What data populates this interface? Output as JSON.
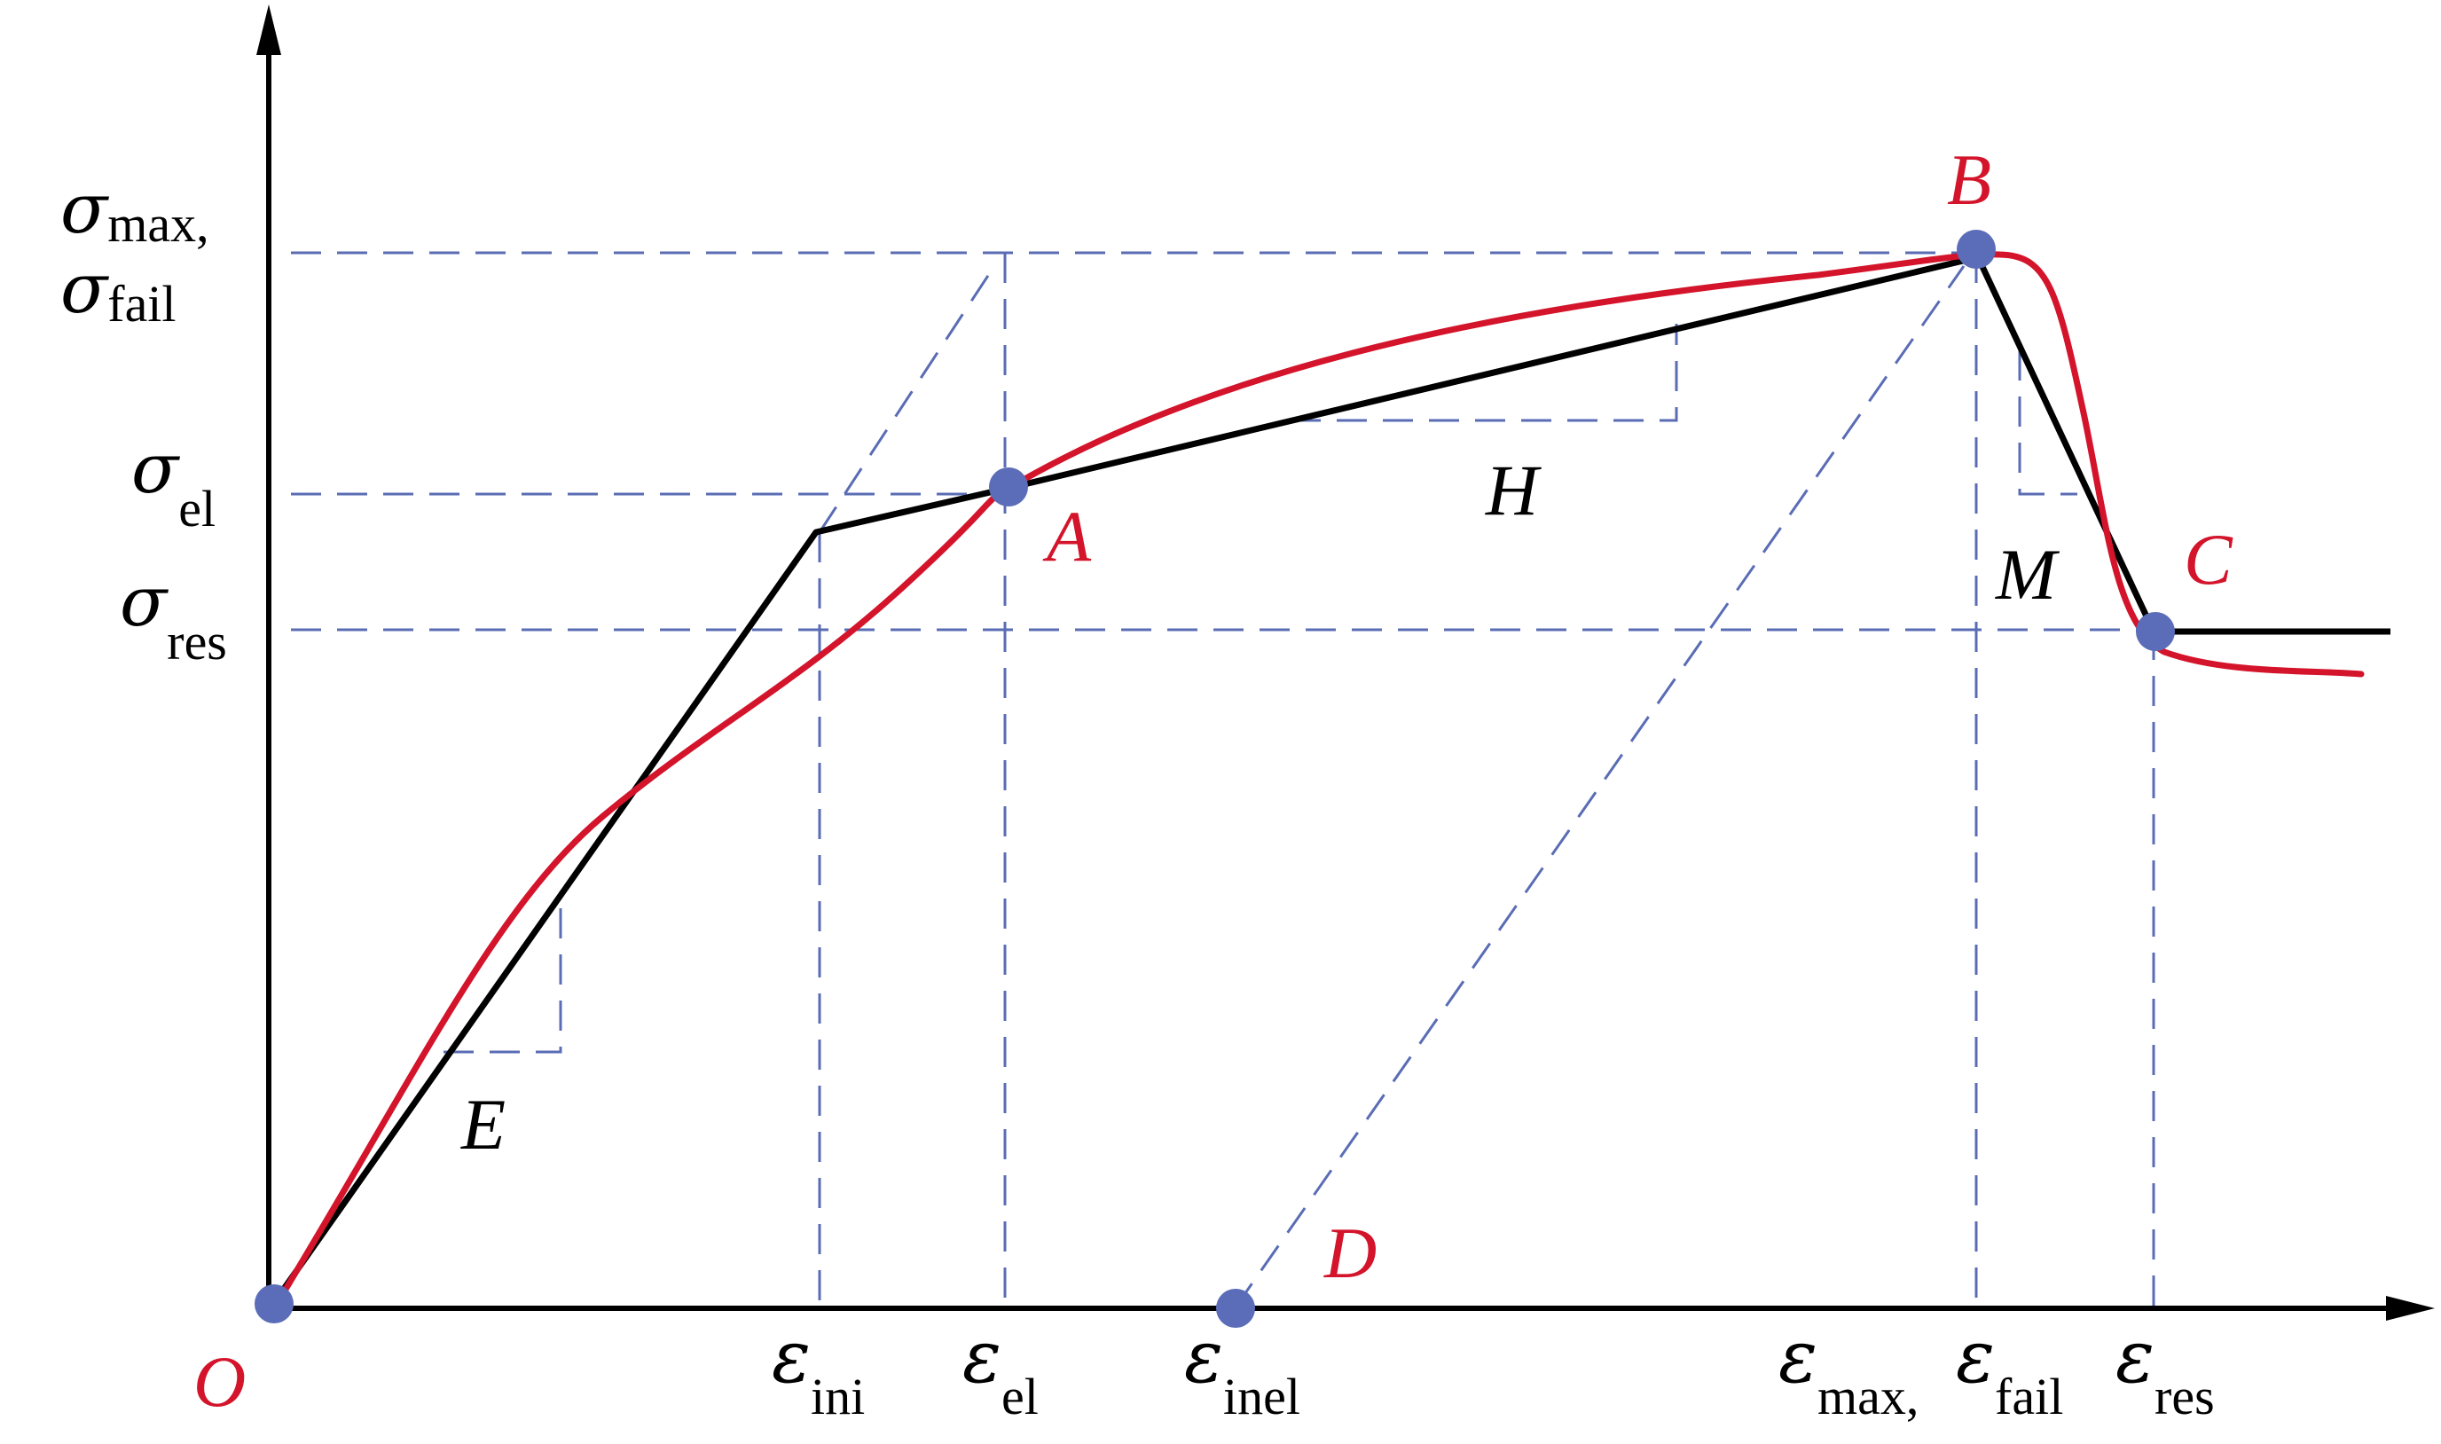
{
  "colors": {
    "axis": "#000000",
    "bilinear": "#000000",
    "curve": "#d3142b",
    "guide": "#5a6cb4",
    "point": "#5b6db8",
    "point_label": "#d3142b",
    "text": "#000000"
  },
  "y_labels": {
    "sigma_max_sym": "σ",
    "sigma_max_sub": "max,",
    "sigma_fail_sym": "σ",
    "sigma_fail_sub": "fail",
    "sigma_el_sym": "σ",
    "sigma_el_sub": "el",
    "sigma_res_sym": "σ",
    "sigma_res_sub": "res"
  },
  "x_labels": {
    "eps_ini_sym": "ε",
    "eps_ini_sub": "ini",
    "eps_el_sym": "ε",
    "eps_el_sub": "el",
    "eps_inel_sym": "ε",
    "eps_inel_sub": "inel",
    "eps_max_sym": "ε",
    "eps_max_sub": "max,",
    "eps_fail_sym": "ε",
    "eps_fail_sub": "fail",
    "eps_res_sym": "ε",
    "eps_res_sub": "res"
  },
  "points": {
    "O": "O",
    "A": "A",
    "B": "B",
    "C": "C",
    "D": "D"
  },
  "slopes": {
    "E": "E",
    "H": "H",
    "M": "M"
  }
}
